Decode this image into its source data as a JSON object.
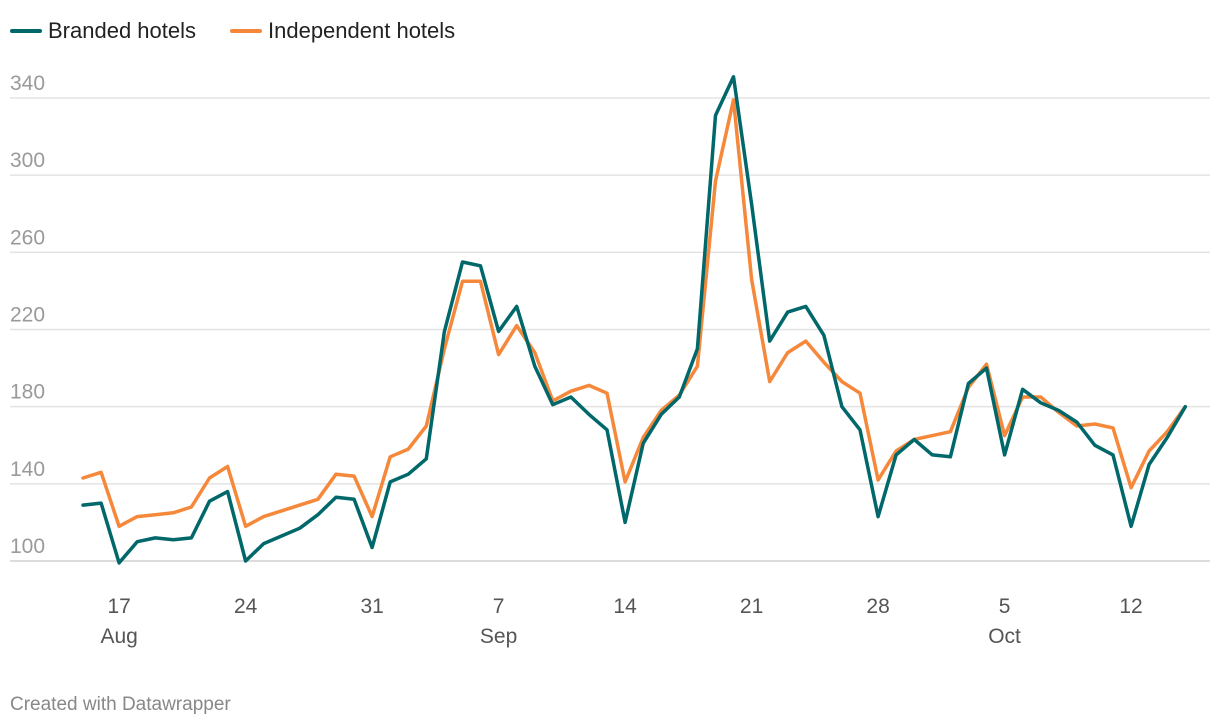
{
  "footer": "Created with Datawrapper",
  "chart_data": {
    "type": "line",
    "title": "",
    "xlabel": "",
    "ylabel": "",
    "x_start": "2020-08-15",
    "x_end": "2020-10-15",
    "ylim": [
      100,
      352
    ],
    "y_ticks": [
      100,
      140,
      180,
      220,
      260,
      300,
      340
    ],
    "x_ticks": [
      {
        "date": "2020-08-17",
        "day": "17",
        "month": "Aug"
      },
      {
        "date": "2020-08-24",
        "day": "24",
        "month": ""
      },
      {
        "date": "2020-08-31",
        "day": "31",
        "month": ""
      },
      {
        "date": "2020-09-07",
        "day": "7",
        "month": "Sep"
      },
      {
        "date": "2020-09-14",
        "day": "14",
        "month": ""
      },
      {
        "date": "2020-09-21",
        "day": "21",
        "month": ""
      },
      {
        "date": "2020-09-28",
        "day": "28",
        "month": ""
      },
      {
        "date": "2020-10-05",
        "day": "5",
        "month": "Oct"
      },
      {
        "date": "2020-10-12",
        "day": "12",
        "month": ""
      }
    ],
    "grid": true,
    "legend_position": "top-left",
    "series": [
      {
        "name": "Branded hotels",
        "color": "#00676a",
        "values": [
          129,
          130,
          99,
          110,
          112,
          111,
          112,
          131,
          136,
          100,
          109,
          113,
          117,
          124,
          133,
          132,
          107,
          141,
          145,
          153,
          219,
          255,
          253,
          219,
          232,
          201,
          181,
          185,
          176,
          168,
          120,
          161,
          176,
          185,
          210,
          331,
          351,
          285,
          214,
          229,
          232,
          217,
          180,
          168,
          123,
          155,
          163,
          155,
          154,
          192,
          200,
          155,
          189,
          182,
          178,
          172,
          160,
          155,
          118,
          150,
          164,
          180
        ]
      },
      {
        "name": "Independent hotels",
        "color": "#f5883a",
        "values": [
          143,
          146,
          118,
          123,
          124,
          125,
          128,
          143,
          149,
          118,
          123,
          126,
          129,
          132,
          145,
          144,
          123,
          154,
          158,
          170,
          210,
          245,
          245,
          207,
          222,
          208,
          183,
          188,
          191,
          187,
          141,
          164,
          178,
          186,
          201,
          297,
          339,
          246,
          193,
          208,
          214,
          203,
          193,
          187,
          142,
          157,
          163,
          165,
          167,
          190,
          202,
          165,
          185,
          185,
          177,
          170,
          171,
          169,
          138,
          157,
          167,
          180
        ]
      }
    ]
  }
}
